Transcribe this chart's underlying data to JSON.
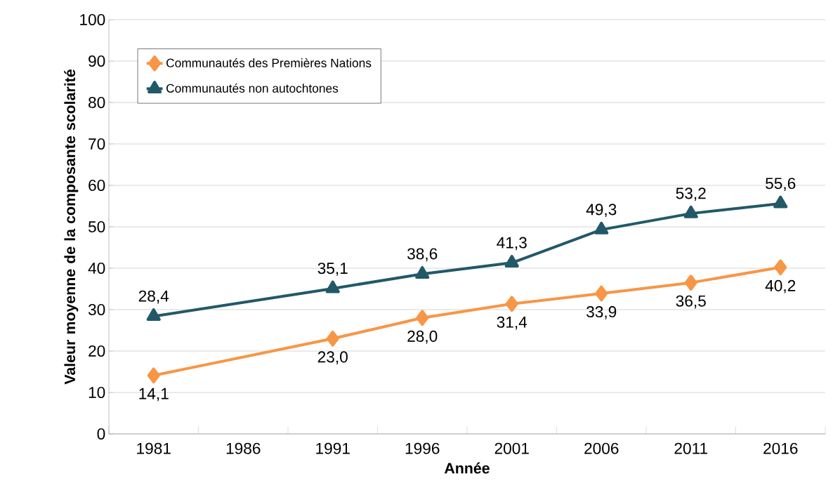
{
  "chart_data": {
    "type": "line",
    "xlabel": "Année",
    "ylabel": "Valeur moyenne de la composante scolarité",
    "categories": [
      "1981",
      "1986",
      "1991",
      "1996",
      "2001",
      "2006",
      "2011",
      "2016"
    ],
    "series": [
      {
        "name": "Communautés des Premières Nations",
        "color": "#f79646",
        "marker": "diamond",
        "values": [
          14.1,
          null,
          23.0,
          28.0,
          31.4,
          33.9,
          36.5,
          40.2
        ],
        "value_labels": [
          "14,1",
          null,
          "23,0",
          "28,0",
          "31,4",
          "33,9",
          "36,5",
          "40,2"
        ]
      },
      {
        "name": "Communautés non autochtones",
        "color": "#215968",
        "marker": "triangle",
        "values": [
          28.4,
          null,
          35.1,
          38.6,
          41.3,
          49.3,
          53.2,
          55.6
        ],
        "value_labels": [
          "28,4",
          null,
          "35,1",
          "38,6",
          "41,3",
          "49,3",
          "53,2",
          "55,6"
        ]
      }
    ],
    "ylim": [
      0,
      100
    ],
    "yticks": [
      0,
      10,
      20,
      30,
      40,
      50,
      60,
      70,
      80,
      90,
      100
    ],
    "grid": "y",
    "legend": "top left",
    "line_style": "solid"
  }
}
